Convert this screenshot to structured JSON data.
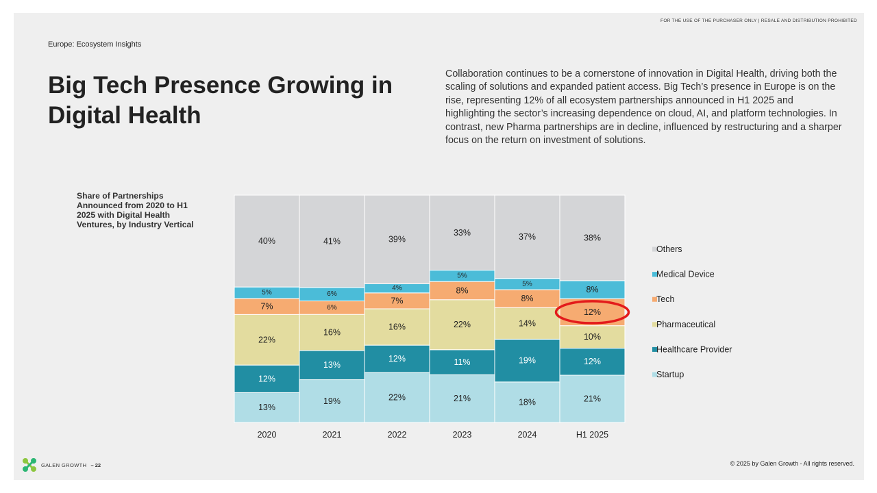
{
  "header": {
    "disclaimer": "FOR THE USE OF THE PURCHASER ONLY | RESALE AND DISTRIBUTION PROHIBITED",
    "section": "Europe: Ecosystem Insights"
  },
  "title": "Big Tech Presence Growing in Digital Health",
  "body_text": "Collaboration continues to be a cornerstone of innovation in Digital Health, driving both the scaling of solutions and expanded patient access. Big Tech’s presence in Europe is on the rise, representing 12% of all ecosystem partnerships announced in H1 2025 and highlighting the sector’s increasing dependence on cloud, AI, and platform technologies. In contrast, new Pharma partnerships are in decline, influenced by restructuring and a sharper focus on the return on investment of solutions.",
  "chart_caption": "Share of Partnerships Announced from 2020 to H1 2025 with Digital Health Ventures, by Industry Vertical",
  "chart_data": {
    "type": "bar",
    "stacked": true,
    "normalized_to_percent": true,
    "categories": [
      "2020",
      "2021",
      "2022",
      "2023",
      "2024",
      "H1 2025"
    ],
    "series": [
      {
        "name": "Startup",
        "color": "#b0dde6",
        "label_color": "#222222",
        "values": [
          13,
          19,
          22,
          21,
          18,
          21
        ]
      },
      {
        "name": "Healthcare Provider",
        "color": "#218ea3",
        "label_color": "#ffffff",
        "values": [
          12,
          13,
          12,
          11,
          19,
          12
        ]
      },
      {
        "name": "Pharmaceutical",
        "color": "#e3dc9f",
        "label_color": "#222222",
        "values": [
          22,
          16,
          16,
          22,
          14,
          10
        ]
      },
      {
        "name": "Tech",
        "color": "#f6ab71",
        "label_color": "#222222",
        "values": [
          7,
          6,
          7,
          8,
          8,
          12
        ]
      },
      {
        "name": "Medical Device",
        "color": "#4bbcd8",
        "label_color": "#222222",
        "values": [
          5,
          6,
          4,
          5,
          5,
          8
        ]
      },
      {
        "name": "Others",
        "color": "#d4d5d7",
        "label_color": "#222222",
        "values": [
          40,
          41,
          39,
          33,
          37,
          38
        ]
      }
    ],
    "legend_position": "right",
    "legend_order": [
      "Others",
      "Medical Device",
      "Tech",
      "Pharmaceutical",
      "Healthcare Provider",
      "Startup"
    ],
    "highlight": {
      "series": "Tech",
      "category": "H1 2025",
      "color": "#e31b1b",
      "shape": "ellipse"
    },
    "grid": false,
    "ylim": [
      0,
      100
    ]
  },
  "footer": {
    "brand": "GALEN GROWTH",
    "page": "– 22",
    "copyright": "© 2025 by Galen Growth  - All rights reserved."
  },
  "logo": {
    "icon": "galen-growth-logo-icon",
    "colors": [
      "#8cc63f",
      "#2bb673"
    ]
  }
}
